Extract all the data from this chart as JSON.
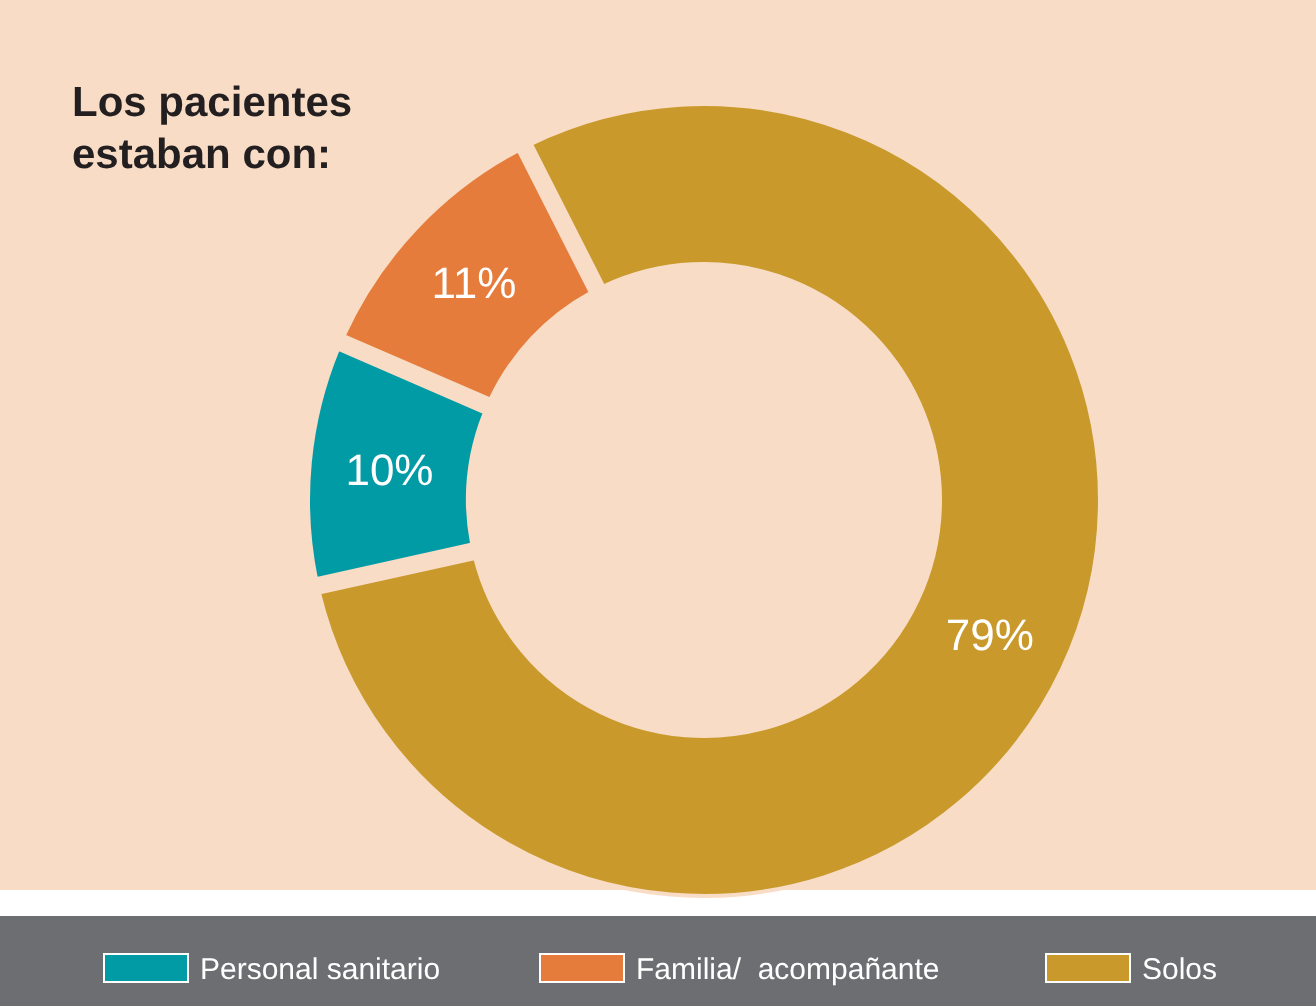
{
  "chart_data": {
    "type": "donut",
    "title": "Los pacientes\nestaban con:",
    "categories": [
      "Personal sanitario",
      "Familia/  acompañante",
      "Solos"
    ],
    "values": [
      10,
      11,
      79
    ],
    "colors": [
      "#009ba4",
      "#e57c3c",
      "#c9992b"
    ],
    "value_labels": [
      "10%",
      "11%",
      "79%"
    ],
    "legend": "bottom"
  }
}
